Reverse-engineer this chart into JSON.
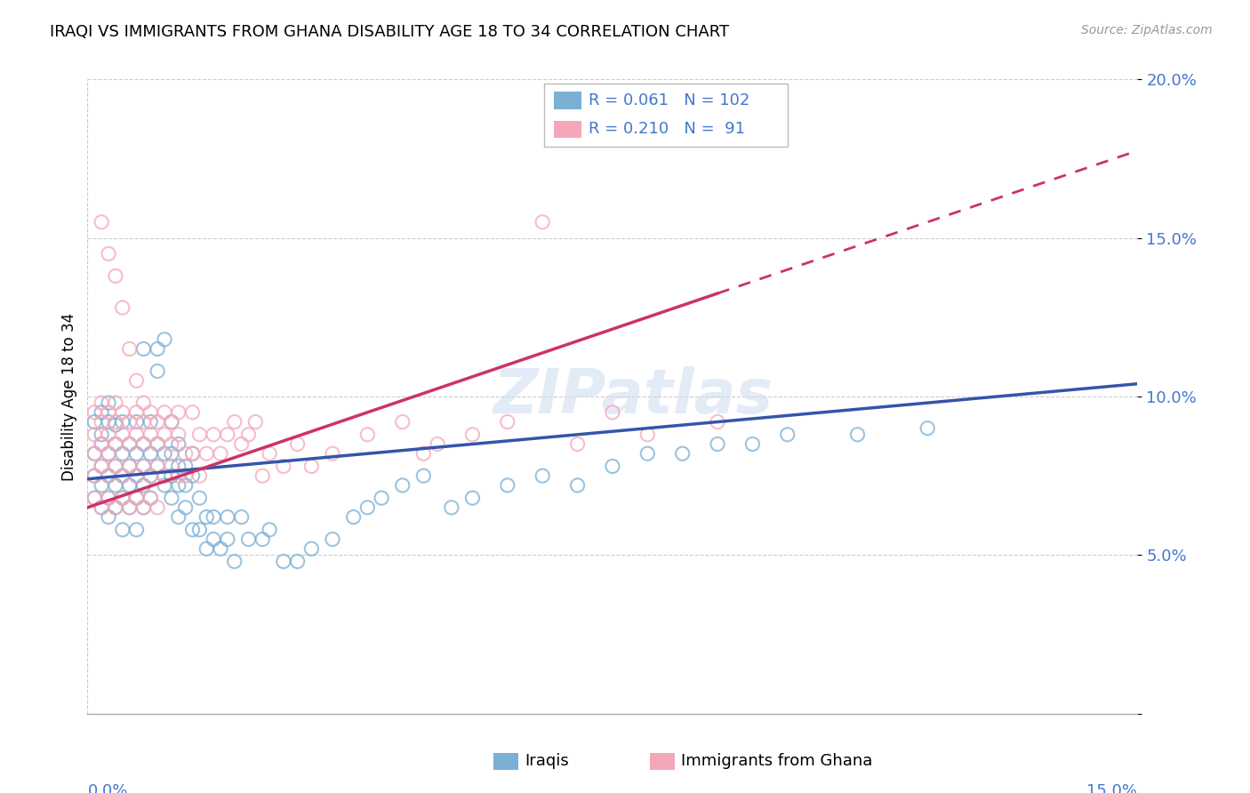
{
  "title": "IRAQI VS IMMIGRANTS FROM GHANA DISABILITY AGE 18 TO 34 CORRELATION CHART",
  "source": "Source: ZipAtlas.com",
  "ylabel": "Disability Age 18 to 34",
  "xlim": [
    0.0,
    0.15
  ],
  "ylim": [
    0.0,
    0.2
  ],
  "yticks": [
    0.0,
    0.05,
    0.1,
    0.15,
    0.2
  ],
  "ytick_labels": [
    "",
    "5.0%",
    "10.0%",
    "15.0%",
    "20.0%"
  ],
  "blue_R": 0.061,
  "blue_N": 102,
  "pink_R": 0.21,
  "pink_N": 91,
  "blue_color": "#7bafd4",
  "pink_color": "#f4a7b9",
  "blue_line_color": "#3355aa",
  "pink_line_color": "#cc3366",
  "tick_color": "#4477cc",
  "watermark": "ZIPatlas",
  "legend_label_blue": "Iraqis",
  "legend_label_pink": "Immigrants from Ghana",
  "blue_intercept": 0.074,
  "blue_slope": 0.2,
  "pink_intercept": 0.065,
  "pink_slope": 0.75,
  "blue_points": [
    [
      0.001,
      0.082
    ],
    [
      0.001,
      0.075
    ],
    [
      0.001,
      0.068
    ],
    [
      0.001,
      0.092
    ],
    [
      0.002,
      0.078
    ],
    [
      0.002,
      0.085
    ],
    [
      0.002,
      0.072
    ],
    [
      0.002,
      0.095
    ],
    [
      0.002,
      0.065
    ],
    [
      0.002,
      0.088
    ],
    [
      0.003,
      0.082
    ],
    [
      0.003,
      0.075
    ],
    [
      0.003,
      0.068
    ],
    [
      0.003,
      0.092
    ],
    [
      0.003,
      0.098
    ],
    [
      0.003,
      0.062
    ],
    [
      0.004,
      0.078
    ],
    [
      0.004,
      0.085
    ],
    [
      0.004,
      0.072
    ],
    [
      0.004,
      0.065
    ],
    [
      0.004,
      0.091
    ],
    [
      0.005,
      0.082
    ],
    [
      0.005,
      0.075
    ],
    [
      0.005,
      0.068
    ],
    [
      0.005,
      0.092
    ],
    [
      0.005,
      0.058
    ],
    [
      0.006,
      0.078
    ],
    [
      0.006,
      0.085
    ],
    [
      0.006,
      0.072
    ],
    [
      0.006,
      0.065
    ],
    [
      0.007,
      0.082
    ],
    [
      0.007,
      0.075
    ],
    [
      0.007,
      0.068
    ],
    [
      0.007,
      0.092
    ],
    [
      0.007,
      0.058
    ],
    [
      0.008,
      0.115
    ],
    [
      0.008,
      0.078
    ],
    [
      0.008,
      0.085
    ],
    [
      0.008,
      0.072
    ],
    [
      0.008,
      0.065
    ],
    [
      0.009,
      0.082
    ],
    [
      0.009,
      0.075
    ],
    [
      0.009,
      0.068
    ],
    [
      0.009,
      0.092
    ],
    [
      0.01,
      0.115
    ],
    [
      0.01,
      0.108
    ],
    [
      0.01,
      0.078
    ],
    [
      0.01,
      0.085
    ],
    [
      0.011,
      0.118
    ],
    [
      0.011,
      0.072
    ],
    [
      0.011,
      0.082
    ],
    [
      0.011,
      0.075
    ],
    [
      0.012,
      0.082
    ],
    [
      0.012,
      0.068
    ],
    [
      0.012,
      0.075
    ],
    [
      0.012,
      0.092
    ],
    [
      0.013,
      0.078
    ],
    [
      0.013,
      0.072
    ],
    [
      0.013,
      0.062
    ],
    [
      0.013,
      0.085
    ],
    [
      0.014,
      0.078
    ],
    [
      0.014,
      0.072
    ],
    [
      0.014,
      0.065
    ],
    [
      0.015,
      0.082
    ],
    [
      0.015,
      0.058
    ],
    [
      0.015,
      0.075
    ],
    [
      0.016,
      0.068
    ],
    [
      0.016,
      0.058
    ],
    [
      0.017,
      0.062
    ],
    [
      0.017,
      0.052
    ],
    [
      0.018,
      0.062
    ],
    [
      0.018,
      0.055
    ],
    [
      0.019,
      0.052
    ],
    [
      0.02,
      0.062
    ],
    [
      0.02,
      0.055
    ],
    [
      0.021,
      0.048
    ],
    [
      0.022,
      0.062
    ],
    [
      0.023,
      0.055
    ],
    [
      0.025,
      0.055
    ],
    [
      0.026,
      0.058
    ],
    [
      0.028,
      0.048
    ],
    [
      0.03,
      0.048
    ],
    [
      0.032,
      0.052
    ],
    [
      0.035,
      0.055
    ],
    [
      0.038,
      0.062
    ],
    [
      0.04,
      0.065
    ],
    [
      0.042,
      0.068
    ],
    [
      0.045,
      0.072
    ],
    [
      0.048,
      0.075
    ],
    [
      0.052,
      0.065
    ],
    [
      0.055,
      0.068
    ],
    [
      0.06,
      0.072
    ],
    [
      0.065,
      0.075
    ],
    [
      0.07,
      0.072
    ],
    [
      0.075,
      0.078
    ],
    [
      0.08,
      0.082
    ],
    [
      0.085,
      0.082
    ],
    [
      0.09,
      0.085
    ],
    [
      0.095,
      0.085
    ],
    [
      0.1,
      0.088
    ],
    [
      0.11,
      0.088
    ],
    [
      0.12,
      0.09
    ]
  ],
  "pink_points": [
    [
      0.001,
      0.095
    ],
    [
      0.001,
      0.088
    ],
    [
      0.001,
      0.075
    ],
    [
      0.001,
      0.068
    ],
    [
      0.001,
      0.082
    ],
    [
      0.002,
      0.092
    ],
    [
      0.002,
      0.085
    ],
    [
      0.002,
      0.078
    ],
    [
      0.002,
      0.065
    ],
    [
      0.002,
      0.098
    ],
    [
      0.002,
      0.155
    ],
    [
      0.003,
      0.095
    ],
    [
      0.003,
      0.088
    ],
    [
      0.003,
      0.075
    ],
    [
      0.003,
      0.068
    ],
    [
      0.003,
      0.082
    ],
    [
      0.003,
      0.145
    ],
    [
      0.004,
      0.092
    ],
    [
      0.004,
      0.085
    ],
    [
      0.004,
      0.078
    ],
    [
      0.004,
      0.065
    ],
    [
      0.004,
      0.098
    ],
    [
      0.004,
      0.138
    ],
    [
      0.005,
      0.095
    ],
    [
      0.005,
      0.088
    ],
    [
      0.005,
      0.075
    ],
    [
      0.005,
      0.068
    ],
    [
      0.005,
      0.128
    ],
    [
      0.006,
      0.092
    ],
    [
      0.006,
      0.085
    ],
    [
      0.006,
      0.078
    ],
    [
      0.006,
      0.065
    ],
    [
      0.006,
      0.115
    ],
    [
      0.007,
      0.095
    ],
    [
      0.007,
      0.088
    ],
    [
      0.007,
      0.075
    ],
    [
      0.007,
      0.068
    ],
    [
      0.007,
      0.105
    ],
    [
      0.008,
      0.092
    ],
    [
      0.008,
      0.085
    ],
    [
      0.008,
      0.078
    ],
    [
      0.008,
      0.065
    ],
    [
      0.008,
      0.098
    ],
    [
      0.009,
      0.095
    ],
    [
      0.009,
      0.088
    ],
    [
      0.009,
      0.075
    ],
    [
      0.009,
      0.068
    ],
    [
      0.01,
      0.092
    ],
    [
      0.01,
      0.085
    ],
    [
      0.01,
      0.078
    ],
    [
      0.01,
      0.065
    ],
    [
      0.011,
      0.095
    ],
    [
      0.011,
      0.088
    ],
    [
      0.011,
      0.075
    ],
    [
      0.012,
      0.092
    ],
    [
      0.012,
      0.085
    ],
    [
      0.012,
      0.078
    ],
    [
      0.013,
      0.095
    ],
    [
      0.013,
      0.088
    ],
    [
      0.013,
      0.075
    ],
    [
      0.014,
      0.082
    ],
    [
      0.014,
      0.075
    ],
    [
      0.015,
      0.095
    ],
    [
      0.015,
      0.082
    ],
    [
      0.016,
      0.088
    ],
    [
      0.016,
      0.075
    ],
    [
      0.017,
      0.082
    ],
    [
      0.018,
      0.088
    ],
    [
      0.019,
      0.082
    ],
    [
      0.02,
      0.088
    ],
    [
      0.021,
      0.092
    ],
    [
      0.022,
      0.085
    ],
    [
      0.023,
      0.088
    ],
    [
      0.024,
      0.092
    ],
    [
      0.025,
      0.075
    ],
    [
      0.026,
      0.082
    ],
    [
      0.028,
      0.078
    ],
    [
      0.03,
      0.085
    ],
    [
      0.032,
      0.078
    ],
    [
      0.035,
      0.082
    ],
    [
      0.04,
      0.088
    ],
    [
      0.045,
      0.092
    ],
    [
      0.048,
      0.082
    ],
    [
      0.05,
      0.085
    ],
    [
      0.055,
      0.088
    ],
    [
      0.06,
      0.092
    ],
    [
      0.065,
      0.155
    ],
    [
      0.07,
      0.085
    ],
    [
      0.075,
      0.095
    ],
    [
      0.08,
      0.088
    ],
    [
      0.09,
      0.092
    ]
  ]
}
